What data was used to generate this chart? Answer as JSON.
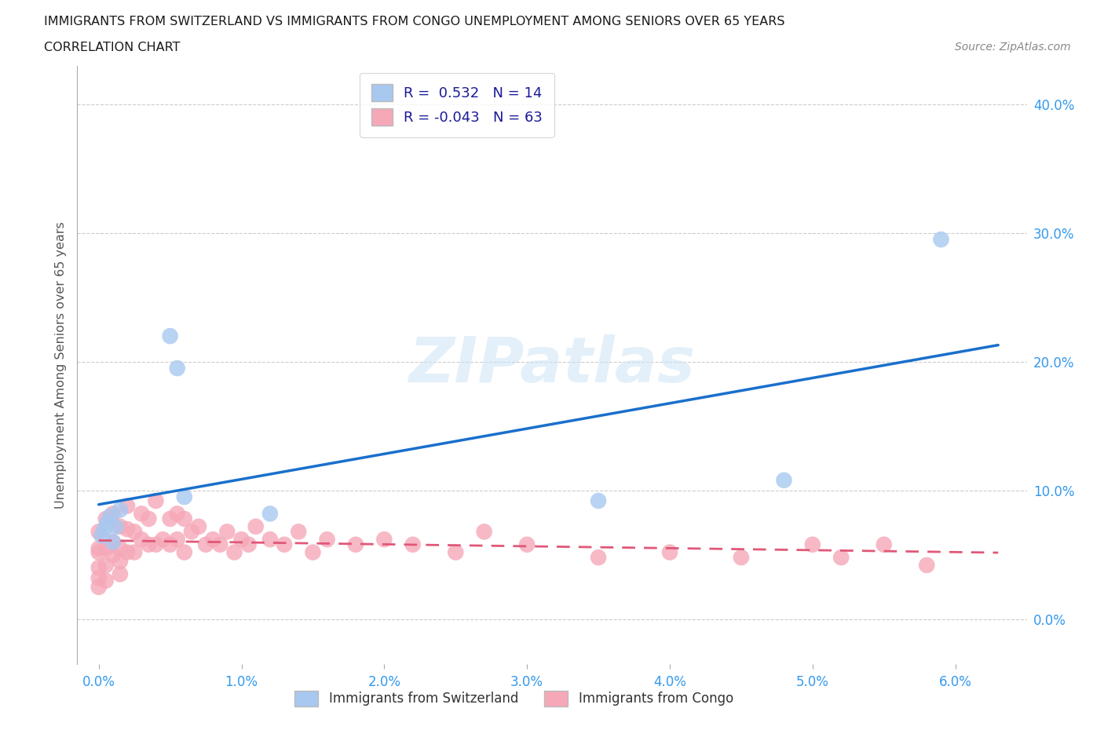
{
  "title_line1": "IMMIGRANTS FROM SWITZERLAND VS IMMIGRANTS FROM CONGO UNEMPLOYMENT AMONG SENIORS OVER 65 YEARS",
  "title_line2": "CORRELATION CHART",
  "source": "Source: ZipAtlas.com",
  "ylabel": "Unemployment Among Seniors over 65 years",
  "x_ticks": [
    0.0,
    1.0,
    2.0,
    3.0,
    4.0,
    5.0,
    6.0
  ],
  "x_tick_labels": [
    "0.0%",
    "1.0%",
    "2.0%",
    "3.0%",
    "4.0%",
    "5.0%",
    "6.0%"
  ],
  "y_ticks": [
    0.0,
    10.0,
    20.0,
    30.0,
    40.0
  ],
  "y_tick_labels": [
    "0.0%",
    "10.0%",
    "20.0%",
    "30.0%",
    "40.0%"
  ],
  "xlim": [
    -0.15,
    6.5
  ],
  "ylim": [
    -3.5,
    43.0
  ],
  "R_swiss": 0.532,
  "N_swiss": 14,
  "R_congo": -0.043,
  "N_congo": 63,
  "swiss_color": "#a8c8f0",
  "congo_color": "#f5a8b8",
  "swiss_line_color": "#1a6fcc",
  "congo_line_color": "#e05878",
  "background_color": "#ffffff",
  "watermark": "ZIPatlas",
  "swiss_x": [
    0.02,
    0.04,
    0.06,
    0.08,
    0.1,
    0.12,
    0.15,
    0.5,
    0.55,
    0.6,
    1.2,
    3.5,
    4.8,
    5.9
  ],
  "swiss_y": [
    6.5,
    7.0,
    7.5,
    8.0,
    6.0,
    7.2,
    8.5,
    22.0,
    19.5,
    9.5,
    8.2,
    9.2,
    10.8,
    29.5
  ],
  "congo_x": [
    0.0,
    0.0,
    0.0,
    0.0,
    0.0,
    0.0,
    0.05,
    0.05,
    0.05,
    0.05,
    0.1,
    0.1,
    0.1,
    0.15,
    0.15,
    0.15,
    0.15,
    0.2,
    0.2,
    0.2,
    0.25,
    0.25,
    0.3,
    0.3,
    0.35,
    0.35,
    0.4,
    0.4,
    0.45,
    0.5,
    0.5,
    0.55,
    0.55,
    0.6,
    0.6,
    0.65,
    0.7,
    0.75,
    0.8,
    0.85,
    0.9,
    0.95,
    1.0,
    1.05,
    1.1,
    1.2,
    1.3,
    1.4,
    1.5,
    1.6,
    1.8,
    2.0,
    2.2,
    2.5,
    2.7,
    3.0,
    3.5,
    4.0,
    4.5,
    5.0,
    5.2,
    5.5,
    5.8
  ],
  "congo_y": [
    5.2,
    4.0,
    3.2,
    6.8,
    5.5,
    2.5,
    7.8,
    5.5,
    4.2,
    3.0,
    8.2,
    6.0,
    5.0,
    7.2,
    5.5,
    4.5,
    3.5,
    8.8,
    7.0,
    5.2,
    6.8,
    5.2,
    8.2,
    6.2,
    7.8,
    5.8,
    9.2,
    5.8,
    6.2,
    7.8,
    5.8,
    8.2,
    6.2,
    7.8,
    5.2,
    6.8,
    7.2,
    5.8,
    6.2,
    5.8,
    6.8,
    5.2,
    6.2,
    5.8,
    7.2,
    6.2,
    5.8,
    6.8,
    5.2,
    6.2,
    5.8,
    6.2,
    5.8,
    5.2,
    6.8,
    5.8,
    4.8,
    5.2,
    4.8,
    5.8,
    4.8,
    5.8,
    4.2
  ]
}
